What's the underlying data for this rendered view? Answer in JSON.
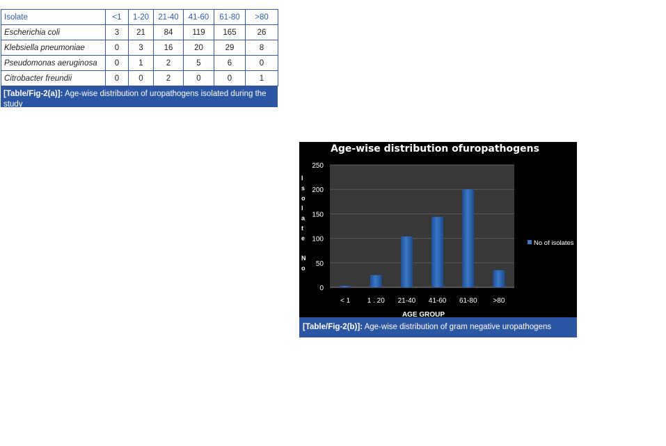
{
  "table": {
    "headers": [
      "Isolate",
      "<1",
      "1-20",
      "21-40",
      "41-60",
      "61-80",
      ">80"
    ],
    "rows": [
      [
        "Escherichia coli",
        "3",
        "21",
        "84",
        "119",
        "165",
        "26"
      ],
      [
        "Klebsiella pneumoniae",
        "0",
        "3",
        "16",
        "20",
        "29",
        "8"
      ],
      [
        "Pseudomonas aeruginosa",
        "0",
        "1",
        "2",
        "5",
        "6",
        "0"
      ],
      [
        "Citrobacter freundii",
        "0",
        "0",
        "2",
        "0",
        "0",
        "1"
      ]
    ],
    "caption_label": "[Table/Fig-2(a)]:",
    "caption_text": " Age-wise distribution of uropathogens isolated during the study"
  },
  "figure": {
    "caption_label": "[Table/Fig-2(b)]:",
    "caption_text": " Age-wise distribution of gram negative uropathogens"
  },
  "chart_data": {
    "type": "bar",
    "title": "Age-wise distribution ofuropathogens",
    "categories": [
      "< 1",
      "1 . 20",
      "21-40",
      "41-60",
      "61-80",
      ">80"
    ],
    "series": [
      {
        "name": "No of isolates",
        "values": [
          3,
          25,
          104,
          144,
          200,
          35
        ]
      }
    ],
    "xlabel": "AGE GROUP",
    "ylabel_lines": [
      "I",
      "s",
      "o",
      "l",
      "a",
      "t",
      "e",
      "",
      "N",
      "o"
    ],
    "ylim": [
      0,
      250
    ],
    "yticks": [
      0,
      50,
      100,
      150,
      200,
      250
    ],
    "grid": true,
    "legend_position": "right",
    "colors": {
      "bar": "#3a78c8",
      "plot_bg": "#383838",
      "figure_bg": "#000000",
      "text": "#ffffff",
      "caption_bg": "#2c55a3"
    }
  }
}
